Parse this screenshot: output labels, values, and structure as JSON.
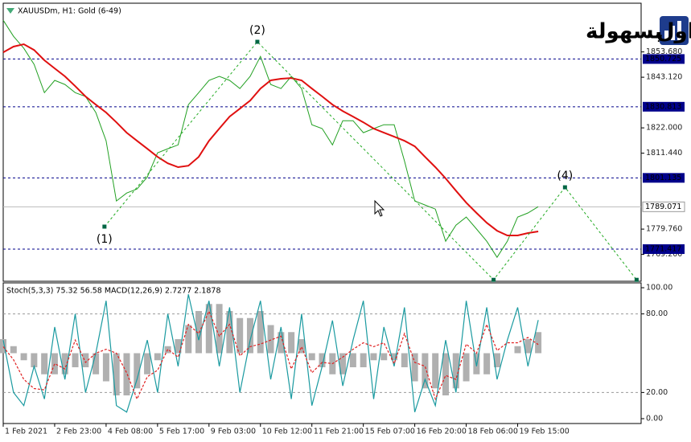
{
  "chart_data": [
    {
      "type": "line",
      "title": "XAUUSDm, H1:  Gold (6-49)",
      "xlim": [
        0,
        62
      ],
      "ylim": [
        1758.0,
        1874.0
      ],
      "yticks": [
        {
          "value": 1853.68,
          "label": "1853.680"
        },
        {
          "value": 1843.12,
          "label": "1843.120"
        },
        {
          "value": 1822.0,
          "label": "1822.000"
        },
        {
          "value": 1811.44,
          "label": "1811.440"
        },
        {
          "value": 1779.76,
          "label": "1779.760"
        },
        {
          "value": 1769.2,
          "label": "1769.200"
        }
      ],
      "xticks": [
        {
          "value": 0,
          "label": "1 Feb 2021"
        },
        {
          "value": 5,
          "label": "2 Feb 23:00"
        },
        {
          "value": 10,
          "label": "4 Feb 08:00"
        },
        {
          "value": 15,
          "label": "5 Feb 17:00"
        },
        {
          "value": 20,
          "label": "9 Feb 03:00"
        },
        {
          "value": 25,
          "label": "10 Feb 12:00"
        },
        {
          "value": 30,
          "label": "11 Feb 21:00"
        },
        {
          "value": 35,
          "label": "15 Feb 07:00"
        },
        {
          "value": 40,
          "label": "16 Feb 20:00"
        },
        {
          "value": 45,
          "label": "18 Feb 06:00"
        },
        {
          "value": 50,
          "label": "19 Feb 15:00"
        }
      ],
      "series": [
        {
          "color": "#22a022",
          "values": [
            1866.9,
            1860.2,
            1855.2,
            1848.5,
            1836.7,
            1841.8,
            1840.1,
            1836.7,
            1835.1,
            1828.4,
            1816.6,
            1791.5,
            1794.8,
            1796.5,
            1801.5,
            1811.6,
            1813.3,
            1814.9,
            1831.7,
            1836.7,
            1841.8,
            1843.5,
            1841.8,
            1838.4,
            1843.5,
            1851.8,
            1840.1,
            1838.4,
            1843.5,
            1838.4,
            1823.3,
            1821.7,
            1814.9,
            1825.0,
            1825.0,
            1820.0,
            1821.7,
            1823.3,
            1823.3,
            1808.2,
            1791.5,
            1789.8,
            1788.1,
            1774.7,
            1781.4,
            1784.8,
            1779.8,
            1774.7,
            1768.0,
            1774.7,
            1784.8,
            1786.5,
            1789.1
          ]
        },
        {
          "color": "#e01010",
          "values": [
            1853.5,
            1855.9,
            1856.9,
            1854.5,
            1850.2,
            1846.8,
            1843.5,
            1839.4,
            1835.1,
            1831.7,
            1828.4,
            1824.3,
            1820.0,
            1816.6,
            1813.3,
            1809.9,
            1807.2,
            1805.6,
            1806.2,
            1809.9,
            1816.6,
            1821.7,
            1826.7,
            1830.0,
            1833.4,
            1838.4,
            1841.8,
            1842.5,
            1842.8,
            1841.8,
            1838.4,
            1835.1,
            1831.7,
            1829.0,
            1826.7,
            1824.3,
            1821.7,
            1820.0,
            1818.3,
            1816.6,
            1814.3,
            1809.9,
            1805.6,
            1800.9,
            1795.8,
            1790.8,
            1786.5,
            1782.4,
            1779.1,
            1777.1,
            1777.1,
            1778.1,
            1778.8
          ]
        }
      ],
      "levels": {
        "color": "#00008b",
        "values": [
          1850.725,
          1830.813,
          1801.135,
          1771.417
        ]
      },
      "current_price": 1789.071,
      "wave": {
        "color": "#22aa22",
        "x": [
          9.84,
          24.7,
          47.66,
          54.6,
          61.56
        ],
        "values": [
          1780.8,
          1857.9,
          1758.6,
          1797.2,
          1758.6
        ],
        "labels": [
          "(1)",
          "(2)",
          null,
          "(4)",
          null
        ]
      },
      "logo": {
        "word1": "التداول",
        "word2": "بسهولة"
      }
    },
    {
      "type": "oscillator",
      "title": "Stoch(5,3,3) 75.32 56.58 MACD(12,26,9) 2.7277 2.1878",
      "ylim": [
        -3.7,
        103.7
      ],
      "y2lim": [
        -10,
        10
      ],
      "yticks": [
        {
          "value": 100,
          "label": "100.00"
        },
        {
          "value": 80,
          "label": "80.00"
        },
        {
          "value": 20,
          "label": "20.00"
        },
        {
          "value": 0,
          "label": "0.00"
        }
      ],
      "levels": [
        80,
        20
      ],
      "series": [
        {
          "color": "#b0b0b0",
          "axis": "y2",
          "values": [
            2,
            1,
            -1,
            -2,
            -3,
            -3,
            -3,
            -2,
            -2,
            -3,
            -4,
            -6,
            -6,
            -5,
            -3,
            -1,
            1,
            2,
            4,
            6,
            7,
            7,
            6,
            5,
            5,
            6,
            4,
            3,
            3,
            2,
            -1,
            -2,
            -3,
            -3,
            -2,
            -2,
            -1,
            -1,
            -1,
            -2,
            -4,
            -5,
            -5,
            -6,
            -5,
            -4,
            -3,
            -3,
            -2,
            0,
            1,
            2,
            3
          ]
        },
        {
          "color": "#1a9aa0",
          "values": [
            60,
            20,
            10,
            40,
            15,
            70,
            30,
            80,
            20,
            50,
            90,
            10,
            5,
            30,
            60,
            20,
            80,
            40,
            95,
            60,
            90,
            40,
            85,
            20,
            60,
            90,
            30,
            70,
            15,
            80,
            10,
            40,
            75,
            25,
            60,
            90,
            15,
            70,
            40,
            85,
            5,
            30,
            10,
            60,
            20,
            90,
            40,
            85,
            30,
            60,
            85,
            40,
            75.32
          ]
        },
        {
          "color": "#e02020",
          "dash": true,
          "values": [
            55,
            45,
            30,
            23,
            22,
            42,
            38,
            60,
            43,
            50,
            53,
            50,
            35,
            15,
            32,
            37,
            53,
            47,
            72,
            65,
            82,
            63,
            72,
            48,
            55,
            57,
            60,
            63,
            38,
            55,
            35,
            43,
            42,
            47,
            53,
            58,
            55,
            58,
            42,
            65,
            43,
            40,
            15,
            33,
            30,
            57,
            50,
            72,
            52,
            58,
            58,
            62,
            56.58
          ]
        }
      ]
    }
  ]
}
